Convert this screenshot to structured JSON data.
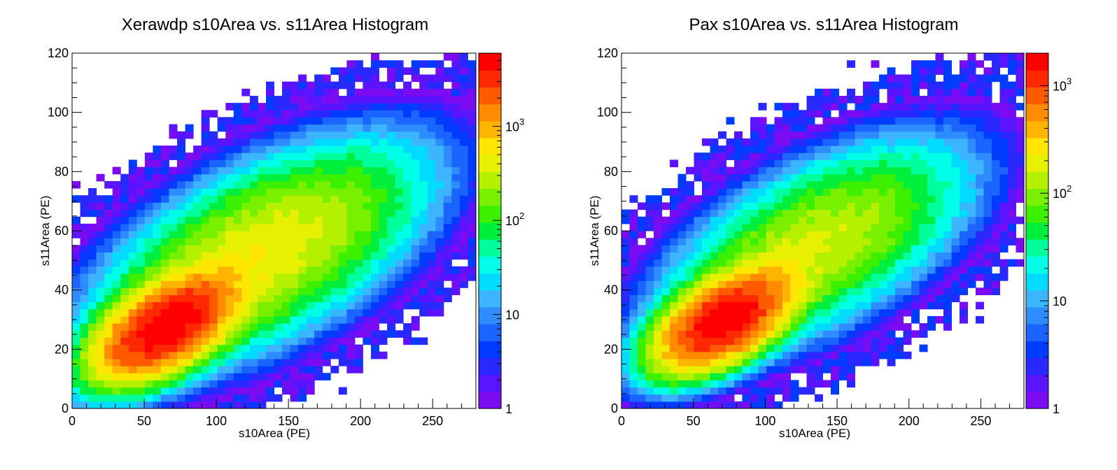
{
  "chart_data": [
    {
      "type": "heatmap",
      "title": "Xerawdp s10Area vs. s11Area Histogram",
      "xlabel": "s10Area (PE)",
      "ylabel": "s11Area (PE)",
      "xlim": [
        0,
        280
      ],
      "ylim": [
        0,
        120
      ],
      "x_ticks": [
        "0",
        "50",
        "100",
        "150",
        "200",
        "250"
      ],
      "y_ticks": [
        "0",
        "20",
        "40",
        "60",
        "80",
        "100",
        "120"
      ],
      "colorbar": {
        "scale": "log",
        "min": 1,
        "max": 6000,
        "labels": [
          "1",
          "10",
          "10",
          "10"
        ],
        "label_exponents": [
          "",
          "",
          "2",
          "3"
        ]
      },
      "distribution": {
        "peak_count": 6000,
        "core": {
          "x": 66,
          "y": 28,
          "sx": 22,
          "sy": 8,
          "rho": 0.55
        },
        "halo": {
          "x": 130,
          "y": 52,
          "sx": 48,
          "sy": 16,
          "rho": 0.6,
          "weight": 0.08
        },
        "bin_width_x": 5.6,
        "bin_width_y": 2.4
      }
    },
    {
      "type": "heatmap",
      "title": "Pax s10Area vs. s11Area Histogram",
      "xlabel": "s10Area (PE)",
      "ylabel": "s11Area (PE)",
      "xlim": [
        0,
        280
      ],
      "ylim": [
        0,
        120
      ],
      "x_ticks": [
        "0",
        "50",
        "100",
        "150",
        "200",
        "250"
      ],
      "y_ticks": [
        "0",
        "20",
        "40",
        "60",
        "80",
        "100",
        "120"
      ],
      "colorbar": {
        "scale": "log",
        "min": 1,
        "max": 2000,
        "labels": [
          "1",
          "10",
          "10",
          "10"
        ],
        "label_exponents": [
          "",
          "",
          "2",
          "3"
        ]
      },
      "distribution": {
        "peak_count": 2000,
        "core": {
          "x": 72,
          "y": 30,
          "sx": 22,
          "sy": 8,
          "rho": 0.55
        },
        "halo": {
          "x": 135,
          "y": 55,
          "sx": 48,
          "sy": 16,
          "rho": 0.6,
          "weight": 0.08
        },
        "bin_width_x": 5.6,
        "bin_width_y": 2.4
      }
    }
  ],
  "palette": [
    "#7b0cf2",
    "#5a14ff",
    "#2828ff",
    "#003cff",
    "#1a64ff",
    "#2f8cff",
    "#3cb4ff",
    "#00dcff",
    "#00ffe6",
    "#00ff9c",
    "#00ee3c",
    "#3cf000",
    "#78f000",
    "#b4f000",
    "#e6f000",
    "#ffe600",
    "#ffb400",
    "#ff8c00",
    "#ff5a00",
    "#ff2800",
    "#ff0000"
  ]
}
